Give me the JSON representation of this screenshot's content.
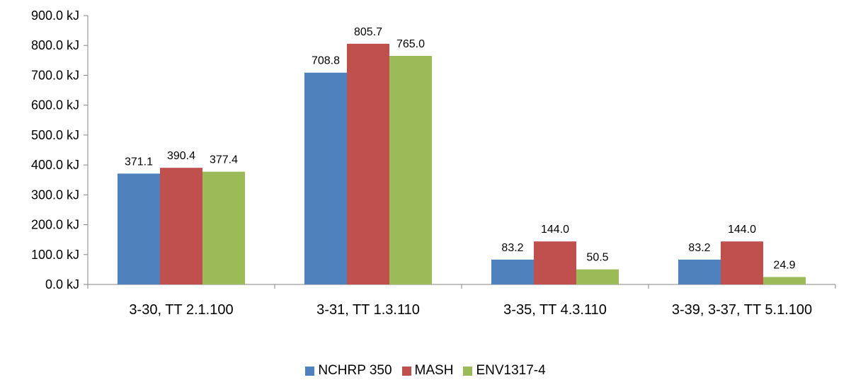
{
  "chart_data": {
    "type": "bar",
    "categories": [
      "3-30, TT 2.1.100",
      "3-31, TT 1.3.110",
      "3-35, TT 4.3.110",
      "3-39, 3-37, TT 5.1.100"
    ],
    "series": [
      {
        "name": "NCHRP 350",
        "color": "#4f81bd",
        "values": [
          371.1,
          708.8,
          83.2,
          83.2
        ],
        "labels": [
          "371.1",
          "708.8",
          "83.2",
          "83.2"
        ]
      },
      {
        "name": "MASH",
        "color": "#c0504d",
        "values": [
          390.4,
          805.7,
          144.0,
          144.0
        ],
        "labels": [
          "390.4",
          "805.7",
          "144.0",
          "144.0"
        ]
      },
      {
        "name": "ENV1317-4",
        "color": "#9bbb59",
        "values": [
          377.4,
          765.0,
          50.5,
          24.9
        ],
        "labels": [
          "377.4",
          "765.0",
          "50.5",
          "24.9"
        ]
      }
    ],
    "yticks": [
      "0.0 kJ",
      "100.0 kJ",
      "200.0 kJ",
      "300.0 kJ",
      "400.0 kJ",
      "500.0 kJ",
      "600.0 kJ",
      "700.0 kJ",
      "800.0 kJ",
      "900.0 kJ"
    ],
    "ylim": [
      0,
      900
    ],
    "grid": false,
    "legend_position": "bottom"
  }
}
